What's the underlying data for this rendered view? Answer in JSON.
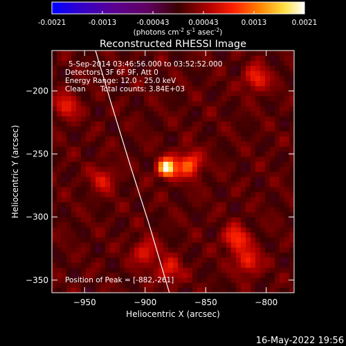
{
  "chart_data": {
    "type": "heatmap",
    "title": "Reconstructed RHESSI Image",
    "xlabel": "Heliocentric X (arcsec)",
    "ylabel": "Heliocentric Y (arcsec)",
    "xlim": [
      -977,
      -777
    ],
    "ylim": [
      -360,
      -168
    ],
    "x_ticks": [
      -950,
      -900,
      -850,
      -800
    ],
    "y_ticks": [
      -350,
      -300,
      -250,
      -200
    ],
    "colorbar": {
      "colormap": "hot-with-blue-negatives",
      "range": [
        -0.0021,
        0.0021
      ],
      "ticks": [
        "-0.0021",
        "-0.0013",
        "-0.00043",
        "0.00043",
        "0.0013",
        "0.0021"
      ],
      "units_prefix": "(photons cm",
      "units_exp1": "-2",
      "units_mid1": " s",
      "units_exp2": "-1",
      "units_mid2": " asec",
      "units_exp3": "-2",
      "units_suffix": ")"
    },
    "annotations": {
      "time_range": "5-Sep-2014 03:46:56.000 to 03:52:52.000",
      "detectors": "Detectors: 3F 6F 9F, Att 0",
      "energy": "Energy Range: 12.0 - 25.0 keV",
      "method": "Clean",
      "counts": "Total counts: 3.84E+03",
      "peak": "Position of Peak = [-882,-261]"
    },
    "peak": {
      "x": -882,
      "y": -261,
      "value": 0.0021
    },
    "secondary_sources": [
      {
        "x": -864,
        "y": -258,
        "value": 0.0011
      },
      {
        "x": -825,
        "y": -317,
        "value": 0.0009
      },
      {
        "x": -815,
        "y": -335,
        "value": 0.0008
      },
      {
        "x": -808,
        "y": -190,
        "value": 0.0008
      },
      {
        "x": -965,
        "y": -212,
        "value": 0.0007
      },
      {
        "x": -900,
        "y": -328,
        "value": 0.0007
      },
      {
        "x": -880,
        "y": -342,
        "value": 0.0007
      },
      {
        "x": -935,
        "y": -270,
        "value": 0.0006
      }
    ],
    "limb_line": [
      [
        -941,
        -168
      ],
      [
        -928,
        -210
      ],
      [
        -912,
        -260
      ],
      [
        -897,
        -305
      ],
      [
        -880,
        -360
      ]
    ]
  },
  "footer": {
    "date": "16-May-2022 19:56"
  }
}
